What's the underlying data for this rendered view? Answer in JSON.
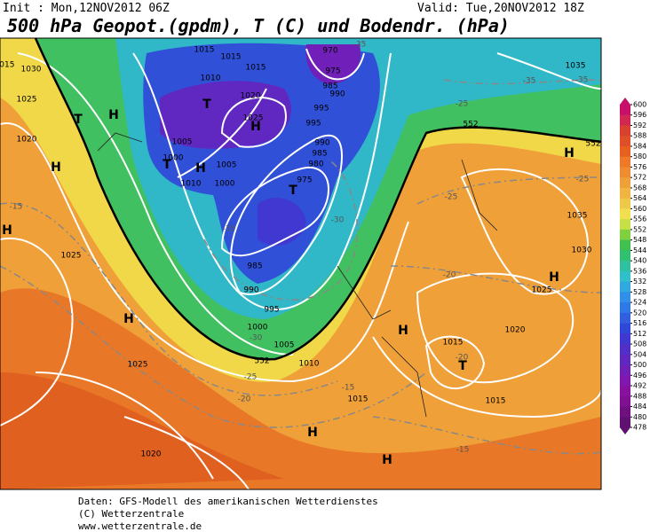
{
  "header": {
    "init": "Init : Mon,12NOV2012 06Z",
    "valid": "Valid: Tue,20NOV2012 18Z",
    "title": "500 hPa Geopot.(gpdm), T (C) und Bodendr. (hPa)"
  },
  "legend": {
    "levels": [
      600,
      596,
      592,
      588,
      584,
      580,
      576,
      572,
      568,
      564,
      560,
      556,
      552,
      548,
      544,
      540,
      536,
      532,
      528,
      524,
      520,
      516,
      512,
      508,
      504,
      500,
      496,
      492,
      488,
      484,
      480,
      478
    ],
    "colors": [
      "#c8106a",
      "#d02850",
      "#d84030",
      "#e05028",
      "#e86020",
      "#f07828",
      "#f08c30",
      "#f0a038",
      "#f0b440",
      "#f0c848",
      "#f0e050",
      "#c8e048",
      "#80d040",
      "#40c050",
      "#30c070",
      "#30c0a0",
      "#30c0c8",
      "#30a8e0",
      "#3090e8",
      "#3078e8",
      "#3060e0",
      "#3048d8",
      "#4038d0",
      "#5030c8",
      "#6028c0",
      "#7020b8",
      "#8018b0",
      "#8a10a0",
      "#801090",
      "#701080",
      "#601070"
    ]
  },
  "labels": [
    "1015",
    "1030",
    "1025",
    "1020",
    "T",
    "H",
    "H",
    "1015",
    "1015",
    "1015",
    "1010",
    "1005",
    "T",
    "1020",
    "1025",
    "H",
    "T",
    "H",
    "1000",
    "1010",
    "1005",
    "1000",
    "970",
    "975",
    "985",
    "990",
    "995",
    "995",
    "990",
    "985",
    "980",
    "975",
    "T",
    "-35",
    "985",
    "990",
    "995",
    "1000",
    "-30",
    "1005",
    "1010",
    "552",
    "-25",
    "-20",
    "-15",
    "1015",
    "H",
    "H",
    "H",
    "1025",
    "1025",
    "1020",
    "-15",
    "H",
    "1035",
    "-35",
    "-25",
    "552",
    "552",
    "H",
    "-25",
    "1035",
    "1030",
    "H",
    "1025",
    "-20",
    "1020",
    "H",
    "1015",
    "T",
    "-20",
    "1015",
    "-15",
    "-30",
    "-25",
    "-35",
    "-35"
  ],
  "footer": [
    "Daten: GFS-Modell des amerikanischen Wetterdienstes",
    "(C) Wetterzentrale",
    "www.wetterzentrale.de"
  ]
}
